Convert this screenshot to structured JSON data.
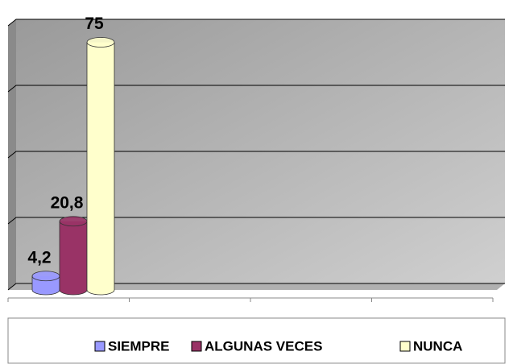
{
  "chart_data": {
    "type": "bar3d",
    "categories": [
      null,
      null,
      null,
      null
    ],
    "series": [
      {
        "name": "SIEMPRE",
        "color": "#9999ff",
        "values": [
          4.2,
          null,
          null,
          null
        ],
        "value_labels": [
          "4,2",
          null,
          null,
          null
        ]
      },
      {
        "name": "ALGUNAS VECES",
        "color": "#993366",
        "values": [
          20.8,
          null,
          null,
          null
        ],
        "value_labels": [
          "20,8",
          null,
          null,
          null
        ]
      },
      {
        "name": "NUNCA",
        "color": "#ffffcc",
        "values": [
          75,
          null,
          null,
          null
        ],
        "value_labels": [
          "75",
          null,
          null,
          null
        ]
      }
    ],
    "ylim": [
      0,
      80
    ],
    "yticks": [
      0,
      20,
      40,
      60,
      80
    ],
    "grid": true,
    "legend": "bottom"
  }
}
